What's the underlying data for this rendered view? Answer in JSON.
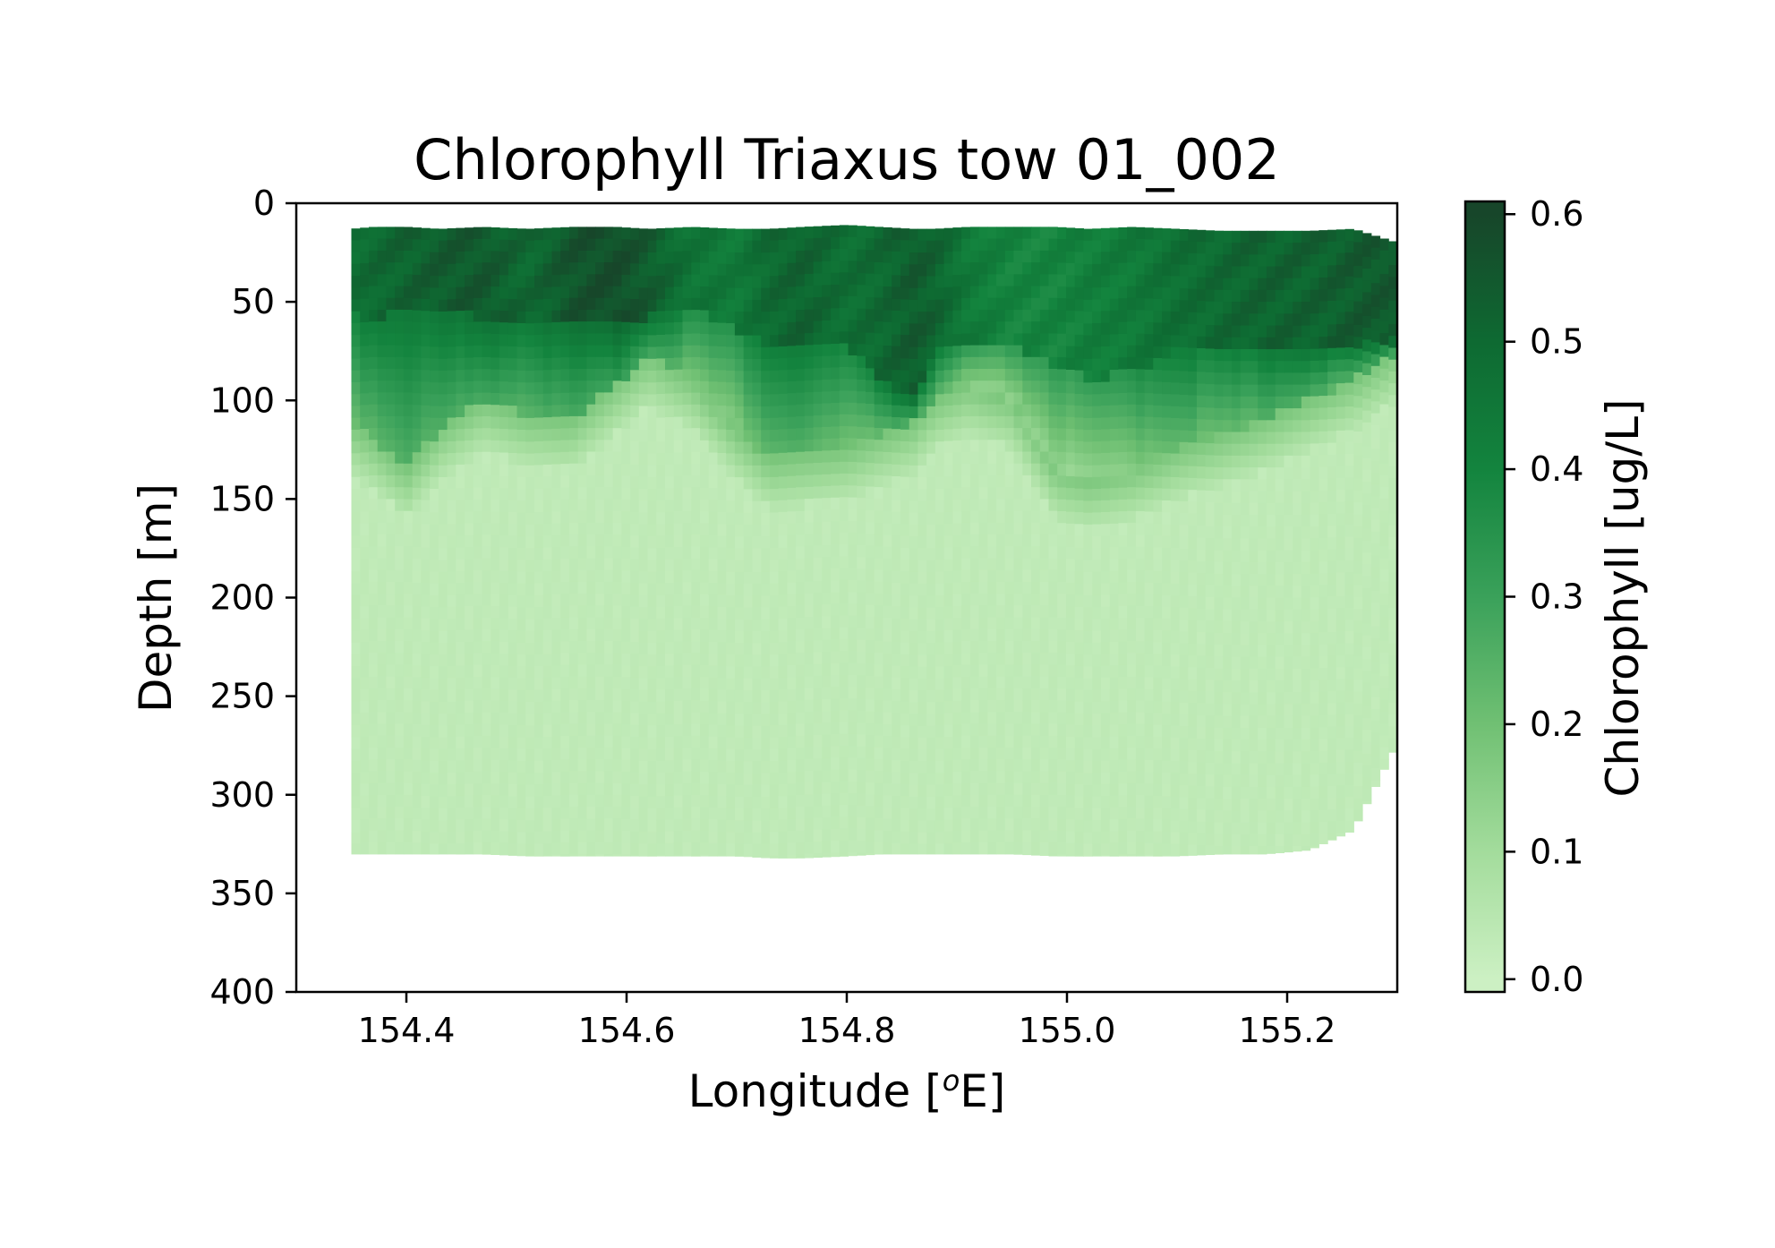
{
  "chart_data": {
    "type": "heatmap",
    "title": "Chlorophyll Triaxus tow 01_002",
    "xlabel": "Longitude [",
    "xlabel_sup": "o",
    "xlabel_suffix": "E]",
    "ylabel": "Depth [m]",
    "colorbar_label": "Chlorophyll [ug/L]",
    "xlim": [
      154.3,
      155.3
    ],
    "ylim": [
      400,
      0
    ],
    "y_inverted": true,
    "x_ticks": [
      154.4,
      154.6,
      154.8,
      155.0,
      155.2
    ],
    "x_tick_labels": [
      "154.4",
      "154.6",
      "154.8",
      "155.0",
      "155.2"
    ],
    "y_ticks": [
      0,
      50,
      100,
      150,
      200,
      250,
      300,
      350,
      400
    ],
    "y_tick_labels": [
      "0",
      "50",
      "100",
      "150",
      "200",
      "250",
      "300",
      "350",
      "400"
    ],
    "colorbar": {
      "colormap": "Greens",
      "vmin": -0.01,
      "vmax": 0.61,
      "ticks": [
        0.0,
        0.1,
        0.2,
        0.3,
        0.4,
        0.5,
        0.6
      ],
      "tick_labels": [
        "0.0",
        "0.1",
        "0.2",
        "0.3",
        "0.4",
        "0.5",
        "0.6"
      ],
      "colors": [
        "#ccf0c3",
        "#a3dc9c",
        "#70c073",
        "#3aa15a",
        "#13843e",
        "#0e6a32",
        "#17462a"
      ]
    },
    "data_extent": {
      "lon_min": 154.35,
      "lon_max": 155.3,
      "depth_min": 12,
      "depth_max": 330
    },
    "grid": false,
    "profile": {
      "note_units": "longitude in degrees E, depths in m",
      "lon": [
        154.35,
        154.37,
        154.4,
        154.43,
        154.47,
        154.51,
        154.55,
        154.59,
        154.62,
        154.66,
        154.7,
        154.73,
        154.76,
        154.8,
        154.83,
        154.86,
        154.88,
        154.91,
        154.95,
        154.99,
        155.02,
        155.06,
        155.1,
        155.14,
        155.18,
        155.22,
        155.26,
        155.3
      ],
      "top_depth": [
        13,
        12,
        12,
        13,
        12,
        13,
        12,
        12,
        13,
        12,
        13,
        13,
        12,
        11,
        12,
        13,
        13,
        12,
        12,
        12,
        13,
        12,
        13,
        14,
        14,
        14,
        13,
        20
      ],
      "bottom_depth": [
        330,
        330,
        330,
        330,
        330,
        331,
        331,
        331,
        331,
        331,
        331,
        332,
        332,
        331,
        330,
        330,
        330,
        330,
        330,
        331,
        331,
        331,
        331,
        330,
        330,
        328,
        318,
        274
      ],
      "dark_layer_bottom": [
        55,
        60,
        52,
        55,
        58,
        60,
        62,
        60,
        58,
        52,
        65,
        72,
        70,
        72,
        90,
        100,
        75,
        70,
        72,
        82,
        90,
        85,
        75,
        75,
        72,
        74,
        72,
        70
      ],
      "chl_max_bottom": [
        112,
        120,
        135,
        115,
        100,
        108,
        110,
        92,
        78,
        90,
        115,
        130,
        128,
        125,
        118,
        112,
        100,
        92,
        100,
        135,
        140,
        135,
        125,
        118,
        110,
        100,
        90,
        75
      ],
      "surface_value": [
        0.48,
        0.5,
        0.52,
        0.54,
        0.55,
        0.5,
        0.56,
        0.58,
        0.54,
        0.46,
        0.44,
        0.5,
        0.52,
        0.48,
        0.5,
        0.54,
        0.52,
        0.44,
        0.4,
        0.4,
        0.42,
        0.44,
        0.48,
        0.5,
        0.52,
        0.52,
        0.54,
        0.55
      ],
      "deep_value": 0.02
    }
  }
}
